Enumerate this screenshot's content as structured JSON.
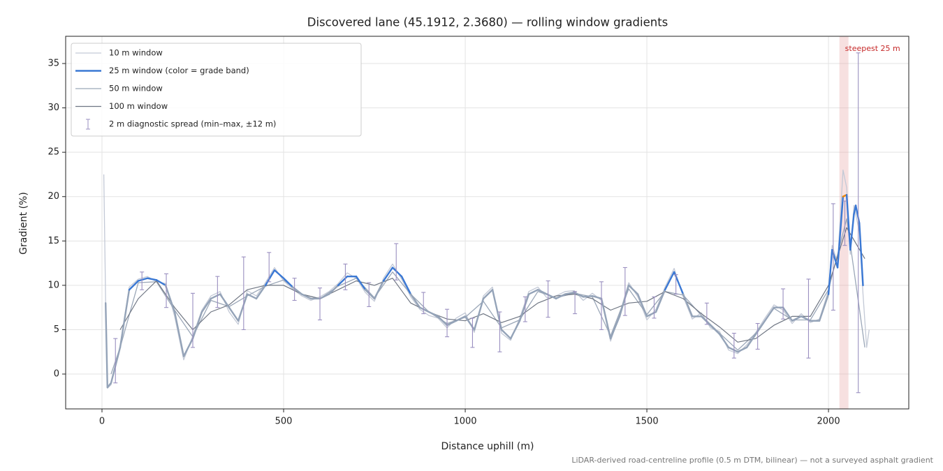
{
  "chart_data": {
    "type": "line",
    "title": "Discovered lane (45.1912, 2.3680) — rolling window gradients",
    "x_label": "Distance uphill (m)",
    "y_label": "Gradient (%)",
    "footnote": "LiDAR-derived road-centreline profile (0.5 m DTM, bilinear) — not a surveyed asphalt gradient",
    "xlim": [
      -100,
      2221
    ],
    "ylim": [
      -3.93,
      38.07
    ],
    "xticks": [
      0,
      500,
      1000,
      1500,
      2000
    ],
    "yticks": [
      0,
      5,
      10,
      15,
      20,
      25,
      30,
      35
    ],
    "grid": true,
    "legend": "upper left",
    "series": [
      {
        "name": "10 m window",
        "color": "#c3c9d6",
        "x": [
          5,
          10,
          15,
          25,
          50,
          75,
          100,
          125,
          150,
          175,
          200,
          225,
          250,
          275,
          300,
          325,
          350,
          375,
          400,
          425,
          450,
          475,
          500,
          525,
          550,
          575,
          600,
          625,
          650,
          675,
          700,
          725,
          750,
          775,
          800,
          825,
          850,
          875,
          900,
          925,
          950,
          975,
          1000,
          1025,
          1050,
          1075,
          1100,
          1125,
          1150,
          1175,
          1200,
          1225,
          1250,
          1275,
          1300,
          1325,
          1350,
          1375,
          1400,
          1425,
          1450,
          1475,
          1500,
          1525,
          1550,
          1575,
          1600,
          1625,
          1650,
          1675,
          1700,
          1725,
          1750,
          1775,
          1800,
          1825,
          1850,
          1875,
          1900,
          1925,
          1950,
          1975,
          2000,
          2010,
          2025,
          2040,
          2050,
          2060,
          2070,
          2075,
          2085,
          2095,
          2105,
          2112
        ],
        "values": [
          22.5,
          8.2,
          -1.6,
          -1.2,
          3.2,
          9.8,
          10.7,
          11,
          10.4,
          10.2,
          6.5,
          1.6,
          4.3,
          7.2,
          8.8,
          9.3,
          7,
          5.6,
          9.4,
          8.8,
          10.3,
          12,
          10.5,
          9.6,
          8.8,
          8.3,
          8.7,
          9.3,
          10.2,
          11.4,
          10.8,
          9.2,
          8.2,
          10.8,
          12.4,
          10.7,
          8.7,
          7.3,
          6.6,
          6.3,
          5.2,
          6.3,
          6.9,
          4.7,
          8.8,
          9.8,
          4.6,
          3.8,
          6.3,
          9.3,
          9.8,
          8.6,
          8.8,
          9.3,
          9.4,
          8.3,
          9.1,
          8.3,
          3.7,
          6.8,
          10.3,
          8.7,
          6.1,
          7.3,
          9.8,
          11.9,
          8.7,
          6.2,
          6.9,
          5.2,
          4.8,
          2.7,
          2.3,
          3.3,
          4.7,
          6.3,
          7.8,
          7.2,
          5.7,
          6.8,
          5.8,
          6.2,
          9.4,
          14.5,
          12.5,
          23,
          21,
          13.5,
          19,
          18,
          16,
          9,
          3,
          5
        ]
      },
      {
        "name": "25 m window (color = grade band)",
        "color": "#3a78d4",
        "base_color": "#94a3b8",
        "grade_bands": [
          {
            "from": 10,
            "color": "#3a78d4"
          },
          {
            "from": 20,
            "color": "#e8860c"
          }
        ],
        "x": [
          10,
          15,
          25,
          50,
          75,
          100,
          125,
          150,
          175,
          200,
          225,
          250,
          275,
          300,
          325,
          350,
          375,
          400,
          425,
          450,
          475,
          500,
          525,
          550,
          575,
          600,
          625,
          650,
          675,
          700,
          725,
          750,
          775,
          800,
          825,
          850,
          875,
          900,
          925,
          950,
          975,
          1000,
          1025,
          1050,
          1075,
          1100,
          1125,
          1150,
          1175,
          1200,
          1225,
          1250,
          1275,
          1300,
          1325,
          1350,
          1375,
          1400,
          1425,
          1450,
          1475,
          1500,
          1525,
          1550,
          1575,
          1600,
          1625,
          1650,
          1675,
          1700,
          1725,
          1750,
          1775,
          1800,
          1825,
          1850,
          1875,
          1900,
          1925,
          1950,
          1975,
          2000,
          2010,
          2025,
          2040,
          2050,
          2060,
          2070,
          2075,
          2085,
          2095
        ],
        "values": [
          8,
          -1.5,
          -1,
          3,
          9.5,
          10.5,
          10.8,
          10.6,
          10,
          7,
          2,
          4,
          7,
          8.5,
          9,
          7.5,
          6,
          9,
          8.5,
          10,
          11.7,
          10.8,
          9.8,
          9,
          8.5,
          8.5,
          9,
          10,
          11,
          11,
          9.5,
          8.5,
          10.5,
          12,
          11,
          9,
          7.5,
          7,
          6.5,
          5.5,
          6,
          6.5,
          5,
          8.5,
          9.5,
          5,
          4,
          6,
          9,
          9.5,
          9,
          8.5,
          9,
          9.2,
          8.7,
          8.8,
          8.5,
          4,
          6.5,
          10,
          9,
          6.5,
          7,
          9.5,
          11.5,
          9,
          6.5,
          6.5,
          5.5,
          4.5,
          3,
          2.5,
          3,
          4.5,
          6,
          7.5,
          7.5,
          6,
          6.5,
          6,
          6,
          9,
          14,
          12,
          20,
          20.2,
          14,
          18,
          19,
          17,
          10
        ]
      },
      {
        "name": "50 m window",
        "color": "#9ba7b8",
        "x": [
          25,
          50,
          100,
          150,
          200,
          250,
          300,
          350,
          400,
          450,
          500,
          550,
          600,
          650,
          700,
          750,
          800,
          850,
          900,
          950,
          1000,
          1050,
          1100,
          1150,
          1200,
          1250,
          1300,
          1350,
          1400,
          1450,
          1500,
          1550,
          1600,
          1650,
          1700,
          1750,
          1800,
          1850,
          1900,
          1950,
          2000,
          2050,
          2100
        ],
        "values": [
          0,
          3,
          10.3,
          10.4,
          7.2,
          4.2,
          8.3,
          7.6,
          8.8,
          9.9,
          10.6,
          9,
          8.5,
          9.9,
          10.8,
          8.6,
          11.5,
          9,
          7,
          5.7,
          6.4,
          8.2,
          5.2,
          6.1,
          9.3,
          8.6,
          9.1,
          8.7,
          4.3,
          9.6,
          6.7,
          9.3,
          8.9,
          6.6,
          4.6,
          2.7,
          4.6,
          7.4,
          6.1,
          6.1,
          9.5,
          17.5,
          3
        ]
      },
      {
        "name": "100 m window",
        "color": "#6e7582",
        "x": [
          50,
          100,
          150,
          200,
          250,
          300,
          350,
          400,
          450,
          500,
          550,
          600,
          650,
          700,
          750,
          800,
          850,
          900,
          950,
          1000,
          1050,
          1100,
          1150,
          1200,
          1250,
          1300,
          1350,
          1400,
          1450,
          1500,
          1550,
          1600,
          1650,
          1700,
          1750,
          1800,
          1850,
          1900,
          1950,
          2000,
          2050,
          2100
        ],
        "values": [
          5,
          8.5,
          10.5,
          7.5,
          5,
          7,
          7.8,
          9.5,
          10,
          10,
          9,
          8.5,
          9.5,
          10.5,
          10,
          10.8,
          8,
          7,
          6.2,
          6,
          6.8,
          5.8,
          6.5,
          8,
          8.8,
          9,
          8.5,
          7.2,
          8,
          8.2,
          9.3,
          8.5,
          6.8,
          5.3,
          3.6,
          4,
          5.5,
          6.5,
          6.5,
          10,
          16.5,
          13
        ]
      }
    ],
    "spread": {
      "name": "2 m diagnostic spread (min–max, ±12 m)",
      "color": "#9a8fc0",
      "x": [
        37,
        110,
        177,
        250,
        318,
        390,
        460,
        530,
        600,
        670,
        735,
        810,
        885,
        950,
        1020,
        1095,
        1165,
        1228,
        1302,
        1375,
        1440,
        1520,
        1580,
        1665,
        1740,
        1805,
        1875,
        1945,
        2013,
        2045,
        2082
      ],
      "low": [
        -1,
        9.5,
        7.5,
        3,
        7.5,
        5,
        10.4,
        8.3,
        6.1,
        9.5,
        7.6,
        10.6,
        6.8,
        4.2,
        3,
        2.5,
        5.9,
        6.4,
        6.8,
        5,
        6.6,
        6.3,
        9,
        5.6,
        1.8,
        2.8,
        6.2,
        1.8,
        7.2,
        14.5,
        -2.1
      ],
      "high": [
        4,
        11.5,
        11.3,
        9.1,
        11,
        13.2,
        13.7,
        10.8,
        9.7,
        12.4,
        10.3,
        14.7,
        9.2,
        7.3,
        6.3,
        7,
        8.7,
        10.5,
        9.3,
        10.4,
        12,
        8.7,
        11.2,
        8,
        4.6,
        5.7,
        9.6,
        10.7,
        19.2,
        19.5,
        36.2
      ]
    },
    "steepest": {
      "label": "steepest 25 m",
      "from": 2030,
      "to": 2055,
      "color": "#e8a7a7",
      "text_color": "#c62828"
    }
  }
}
